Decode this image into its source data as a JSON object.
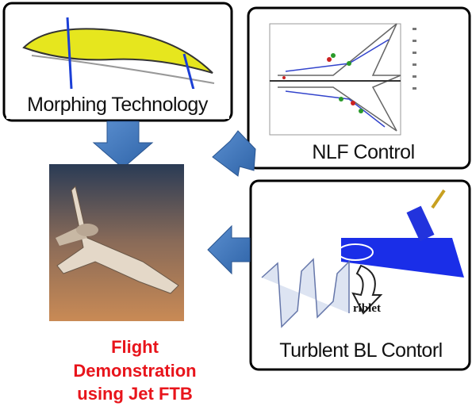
{
  "boxes": [
    {
      "label": "Morphing Technology"
    },
    {
      "label": "NLF Control"
    },
    {
      "label": "Turblent BL Contorl",
      "inset_label": "riblet"
    }
  ],
  "caption": [
    "Flight",
    "Demonstration",
    "using Jet FTB"
  ]
}
